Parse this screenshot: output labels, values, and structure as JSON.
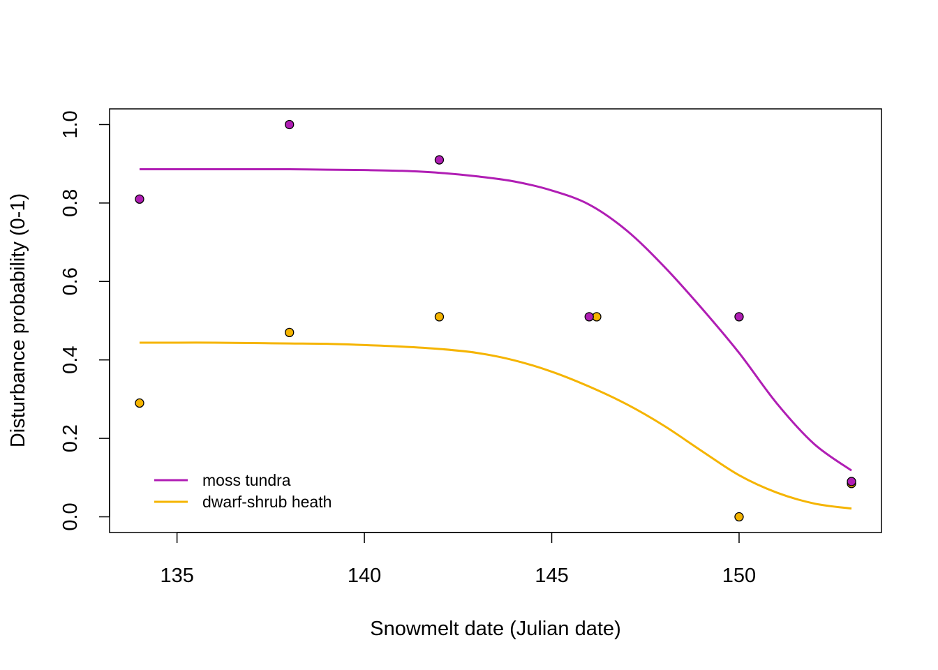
{
  "chart_data": {
    "type": "scatter",
    "title": "",
    "xlabel": "Snowmelt date (Julian date)",
    "ylabel": "Disturbance probability (0-1)",
    "xlim": [
      133.2,
      153.8
    ],
    "ylim": [
      -0.04,
      1.04
    ],
    "x_ticks": [
      135,
      140,
      145,
      150
    ],
    "y_ticks": [
      0.0,
      0.2,
      0.4,
      0.6,
      0.8,
      1.0
    ],
    "x_tick_labels": [
      "135",
      "140",
      "145",
      "150"
    ],
    "y_tick_labels": [
      "0.0",
      "0.2",
      "0.4",
      "0.6",
      "0.8",
      "1.0"
    ],
    "grid": false,
    "legend_position": "bottom-left",
    "series": [
      {
        "name": "moss tundra",
        "color": "#B01EB4",
        "points": {
          "x": [
            134,
            138,
            142,
            146,
            150,
            153
          ],
          "y": [
            0.81,
            1.0,
            0.91,
            0.51,
            0.51,
            0.09
          ]
        },
        "fit": {
          "x": [
            134,
            135,
            136,
            137,
            138,
            139,
            140,
            141,
            142,
            143,
            144,
            145,
            146,
            147,
            148,
            149,
            150,
            151,
            152,
            153
          ],
          "y": [
            0.886,
            0.886,
            0.886,
            0.886,
            0.886,
            0.885,
            0.884,
            0.882,
            0.877,
            0.868,
            0.855,
            0.832,
            0.796,
            0.73,
            0.638,
            0.532,
            0.418,
            0.29,
            0.186,
            0.118
          ]
        }
      },
      {
        "name": "dwarf-shrub heath",
        "color": "#F5B400",
        "points": {
          "x": [
            134,
            138,
            142,
            146.2,
            150,
            153
          ],
          "y": [
            0.29,
            0.47,
            0.51,
            0.51,
            0.0,
            0.085
          ]
        },
        "fit": {
          "x": [
            134,
            135,
            136,
            137,
            138,
            139,
            140,
            141,
            142,
            143,
            144,
            145,
            146,
            147,
            148,
            149,
            150,
            151,
            152,
            153
          ],
          "y": [
            0.444,
            0.444,
            0.444,
            0.443,
            0.442,
            0.441,
            0.438,
            0.434,
            0.428,
            0.418,
            0.399,
            0.37,
            0.332,
            0.287,
            0.232,
            0.168,
            0.106,
            0.062,
            0.034,
            0.021
          ]
        }
      }
    ]
  }
}
